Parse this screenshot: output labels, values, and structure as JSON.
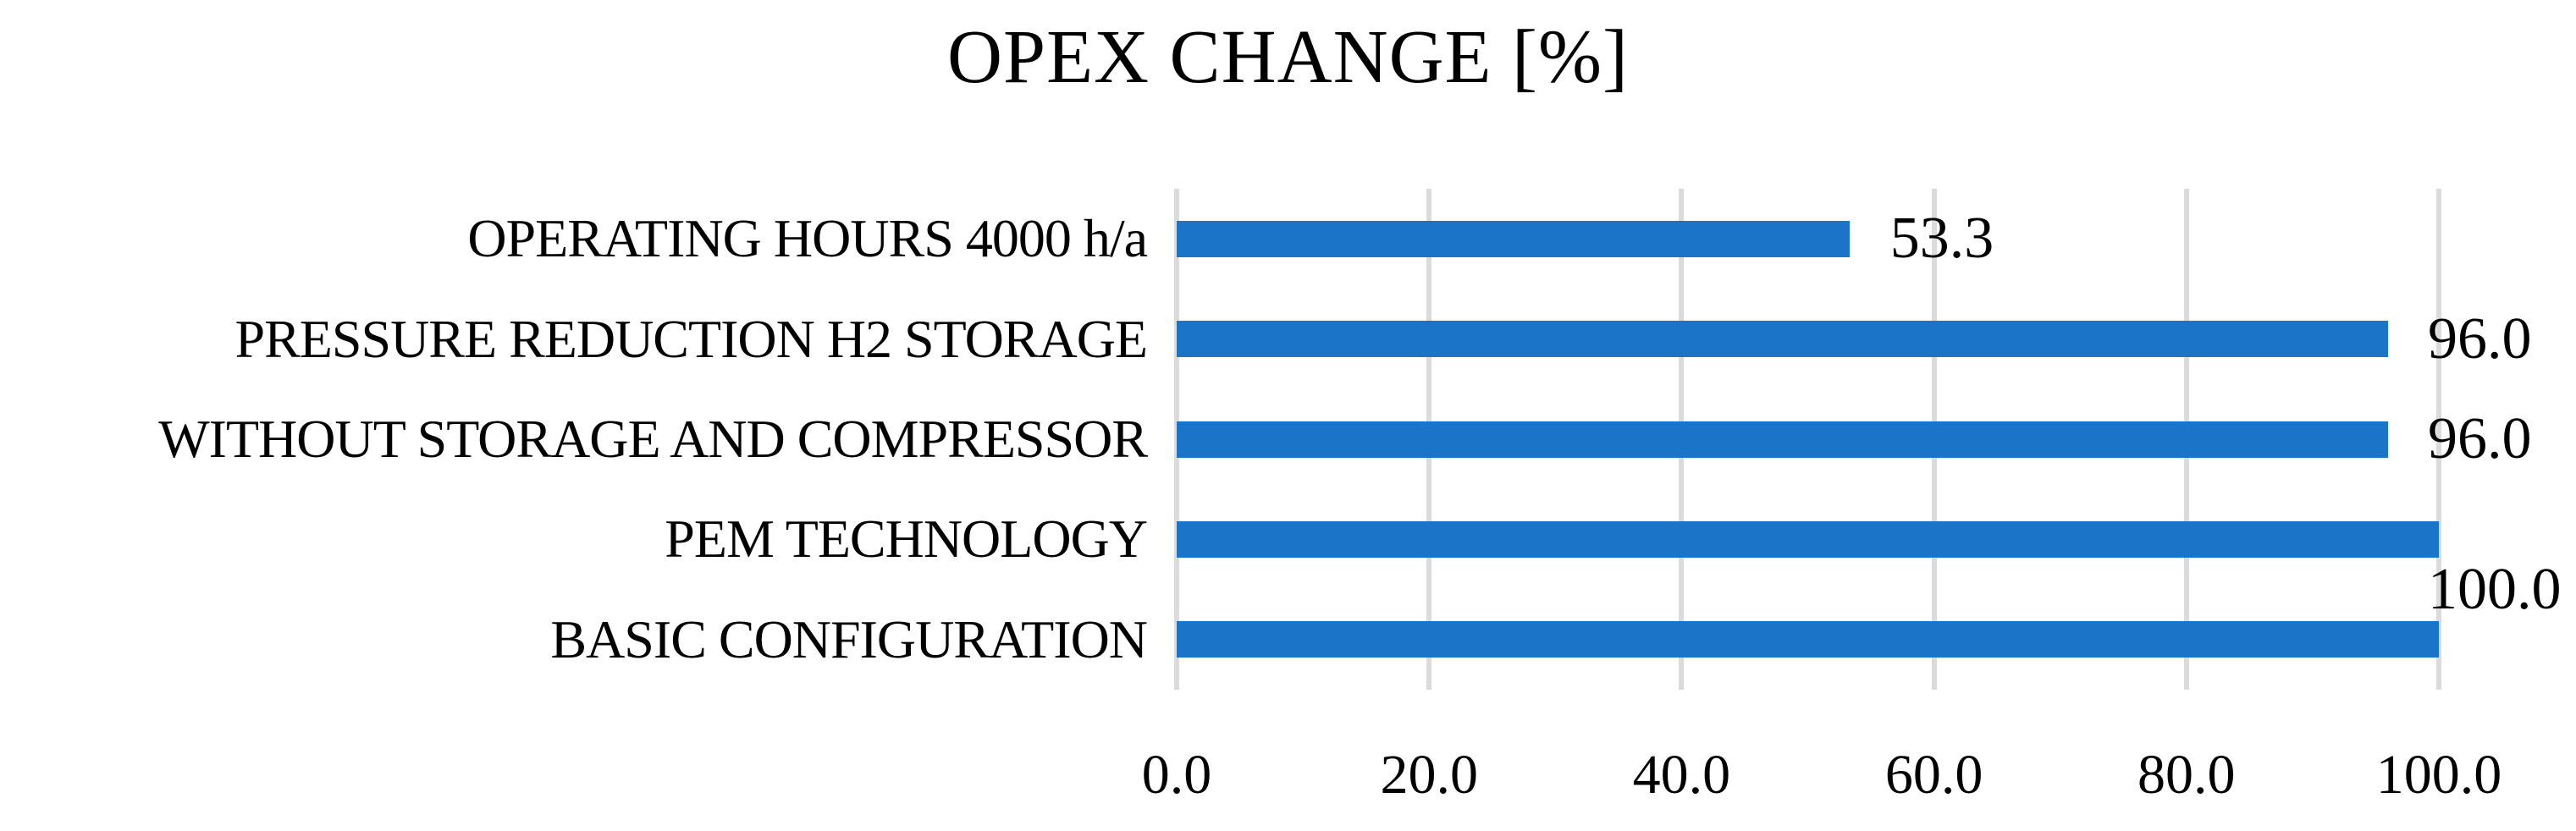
{
  "title": "OPEX CHANGE [%]",
  "colors": {
    "bar": "#1B74C8",
    "gridline": "#DBDBDB",
    "text": "#000000",
    "background": "#FFFFFF"
  },
  "chart_data": {
    "type": "bar",
    "orientation": "horizontal",
    "title": "OPEX CHANGE [%]",
    "categories": [
      "OPERATING HOURS 4000 h/a",
      "PRESSURE REDUCTION H2 STORAGE",
      "WITHOUT STORAGE AND COMPRESSOR",
      "PEM TECHNOLOGY",
      "BASIC CONFIGURATION"
    ],
    "values": [
      53.3,
      96.0,
      96.0,
      100.0,
      100.0
    ],
    "xlim": [
      0,
      100
    ],
    "x_ticks": [
      0,
      20,
      40,
      60,
      80,
      100
    ],
    "x_tick_labels": [
      "0.0",
      "20.0",
      "40.0",
      "60.0",
      "80.0",
      "100.0"
    ],
    "grid": "vertical-gridlines-on",
    "legend": "none",
    "value_labels": [
      {
        "text": "53.3",
        "row": 0,
        "row_offset": 0
      },
      {
        "text": "96.0",
        "row": 1,
        "row_offset": 0
      },
      {
        "text": "96.0",
        "row": 2,
        "row_offset": 0
      },
      {
        "text": "100.0",
        "row": 3,
        "row_offset": 0.5
      }
    ]
  }
}
